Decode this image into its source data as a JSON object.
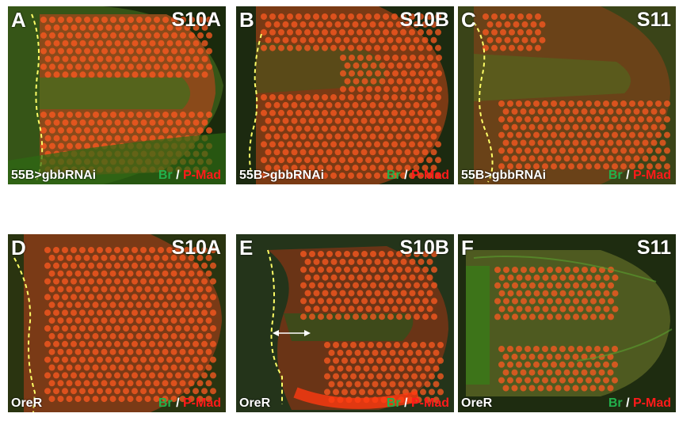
{
  "panels": [
    {
      "letter": "A",
      "stage": "S10A",
      "genotype": "55B>gbbRNAi",
      "br": "Br",
      "sep": " / ",
      "pmad": "P-Mad"
    },
    {
      "letter": "B",
      "stage": "S10B",
      "genotype": "55B>gbbRNAi",
      "br": "Br",
      "sep": " / ",
      "pmad": "P-Mad"
    },
    {
      "letter": "C",
      "stage": "S11",
      "genotype": "55B>gbbRNAi",
      "br": "Br",
      "sep": " / ",
      "pmad": "P-Mad"
    },
    {
      "letter": "D",
      "stage": "S10A",
      "genotype": "OreR",
      "br": "Br",
      "sep": " / ",
      "pmad": "P-Mad"
    },
    {
      "letter": "E",
      "stage": "S10B",
      "genotype": "OreR",
      "br": "Br",
      "sep": " / ",
      "pmad": "P-Mad"
    },
    {
      "letter": "F",
      "stage": "S11",
      "genotype": "OreR",
      "br": "Br",
      "sep": " / ",
      "pmad": "P-Mad"
    }
  ],
  "colors": {
    "br": "#22b14c",
    "pmad": "#ff1a1a",
    "dashed_line": "#ffff66"
  }
}
